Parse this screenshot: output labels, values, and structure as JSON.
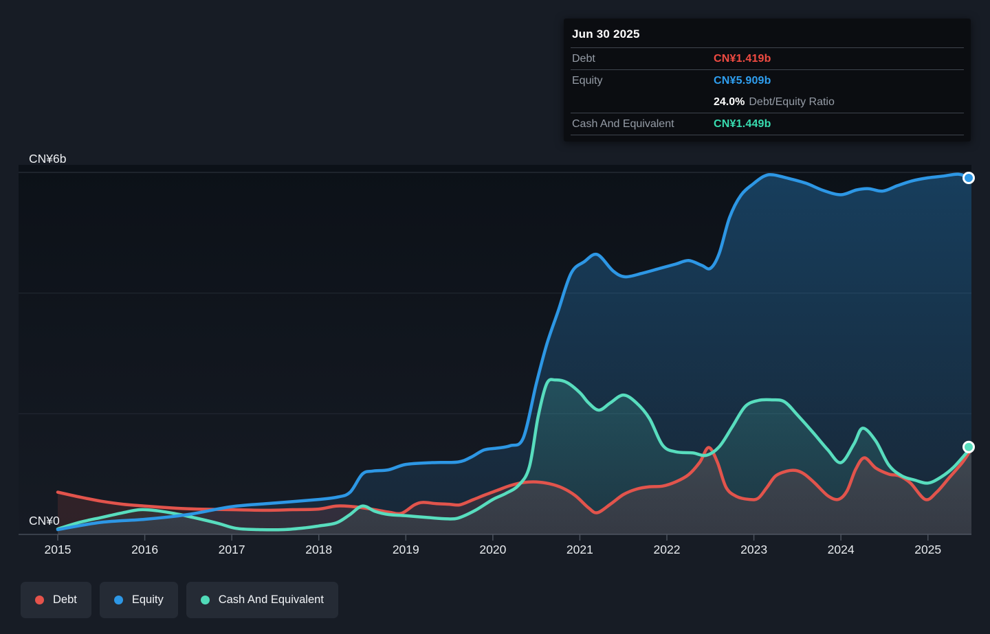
{
  "tooltip": {
    "date": "Jun 30 2025",
    "rows": {
      "debt_label": "Debt",
      "debt_value": "CN¥1.419b",
      "equity_label": "Equity",
      "equity_value": "CN¥5.909b",
      "ratio_value": "24.0%",
      "ratio_label": "Debt/Equity Ratio",
      "cash_label": "Cash And Equivalent",
      "cash_value": "CN¥1.449b"
    }
  },
  "legend": {
    "items": [
      {
        "label": "Debt",
        "color": "#e5534b"
      },
      {
        "label": "Equity",
        "color": "#2d97e5"
      },
      {
        "label": "Cash And Equivalent",
        "color": "#50dab8"
      }
    ]
  },
  "colors": {
    "debt": "#e2544c",
    "equity": "#2d97e5",
    "cash": "#58ddbe",
    "page_bg": "#171c25",
    "plot_bg_top": "#0c1118",
    "plot_bg_bottom": "#161b24",
    "grid_major": "#303741",
    "grid_minor": "#252b35",
    "axis_line": "#454c58",
    "tick_color": "#4a515c",
    "tick_text": "#e8ebee",
    "y_label_text": "#eef0f3"
  },
  "chart_data": {
    "type": "area",
    "currency_unit": "CN¥ billions",
    "xlim": [
      2015,
      2025.5
    ],
    "ylim": [
      0,
      6
    ],
    "x_ticks": [
      "2015",
      "2016",
      "2017",
      "2018",
      "2019",
      "2020",
      "2021",
      "2022",
      "2023",
      "2024",
      "2025"
    ],
    "y_gridlines": [
      6,
      4,
      2
    ],
    "y_axis_labels": [
      {
        "value": 6,
        "text": "CN¥6b"
      },
      {
        "value": 0,
        "text": "CN¥0"
      }
    ],
    "legend_position": "bottom-left",
    "series": [
      {
        "name": "Debt",
        "color": "#e2544c",
        "fill_alpha_top": 0.26,
        "fill_alpha_bottom": 0.12,
        "points": [
          [
            2015.0,
            0.7
          ],
          [
            2015.25,
            0.62
          ],
          [
            2015.5,
            0.55
          ],
          [
            2015.75,
            0.5
          ],
          [
            2016.0,
            0.47
          ],
          [
            2016.3,
            0.44
          ],
          [
            2016.6,
            0.42
          ],
          [
            2017.0,
            0.41
          ],
          [
            2017.4,
            0.4
          ],
          [
            2017.7,
            0.41
          ],
          [
            2018.0,
            0.42
          ],
          [
            2018.2,
            0.47
          ],
          [
            2018.4,
            0.46
          ],
          [
            2018.6,
            0.42
          ],
          [
            2018.8,
            0.37
          ],
          [
            2018.95,
            0.35
          ],
          [
            2019.1,
            0.49
          ],
          [
            2019.2,
            0.53
          ],
          [
            2019.35,
            0.51
          ],
          [
            2019.5,
            0.5
          ],
          [
            2019.62,
            0.49
          ],
          [
            2019.78,
            0.58
          ],
          [
            2019.92,
            0.66
          ],
          [
            2020.05,
            0.73
          ],
          [
            2020.2,
            0.81
          ],
          [
            2020.35,
            0.86
          ],
          [
            2020.5,
            0.87
          ],
          [
            2020.65,
            0.84
          ],
          [
            2020.8,
            0.77
          ],
          [
            2020.95,
            0.64
          ],
          [
            2021.1,
            0.44
          ],
          [
            2021.2,
            0.36
          ],
          [
            2021.35,
            0.5
          ],
          [
            2021.5,
            0.66
          ],
          [
            2021.65,
            0.75
          ],
          [
            2021.8,
            0.79
          ],
          [
            2021.95,
            0.8
          ],
          [
            2022.1,
            0.87
          ],
          [
            2022.25,
            0.99
          ],
          [
            2022.38,
            1.2
          ],
          [
            2022.48,
            1.44
          ],
          [
            2022.58,
            1.2
          ],
          [
            2022.68,
            0.78
          ],
          [
            2022.8,
            0.63
          ],
          [
            2022.95,
            0.58
          ],
          [
            2023.05,
            0.6
          ],
          [
            2023.15,
            0.78
          ],
          [
            2023.25,
            0.97
          ],
          [
            2023.38,
            1.05
          ],
          [
            2023.48,
            1.06
          ],
          [
            2023.58,
            1.0
          ],
          [
            2023.7,
            0.85
          ],
          [
            2023.85,
            0.64
          ],
          [
            2023.97,
            0.58
          ],
          [
            2024.07,
            0.72
          ],
          [
            2024.17,
            1.08
          ],
          [
            2024.27,
            1.27
          ],
          [
            2024.4,
            1.1
          ],
          [
            2024.55,
            1.0
          ],
          [
            2024.67,
            0.97
          ],
          [
            2024.8,
            0.85
          ],
          [
            2024.97,
            0.58
          ],
          [
            2025.1,
            0.7
          ],
          [
            2025.25,
            0.95
          ],
          [
            2025.4,
            1.2
          ],
          [
            2025.5,
            1.419
          ]
        ]
      },
      {
        "name": "Equity",
        "color": "#2d97e5",
        "fill_alpha_top": 0.34,
        "fill_alpha_bottom": 0.1,
        "points": [
          [
            2015.0,
            0.08
          ],
          [
            2015.5,
            0.2
          ],
          [
            2016.0,
            0.25
          ],
          [
            2016.5,
            0.33
          ],
          [
            2017.0,
            0.46
          ],
          [
            2017.5,
            0.52
          ],
          [
            2018.0,
            0.58
          ],
          [
            2018.22,
            0.62
          ],
          [
            2018.36,
            0.7
          ],
          [
            2018.5,
            1.0
          ],
          [
            2018.62,
            1.05
          ],
          [
            2018.8,
            1.07
          ],
          [
            2019.0,
            1.16
          ],
          [
            2019.3,
            1.19
          ],
          [
            2019.6,
            1.2
          ],
          [
            2019.75,
            1.28
          ],
          [
            2019.9,
            1.4
          ],
          [
            2020.05,
            1.43
          ],
          [
            2020.2,
            1.47
          ],
          [
            2020.35,
            1.6
          ],
          [
            2020.5,
            2.5
          ],
          [
            2020.62,
            3.15
          ],
          [
            2020.75,
            3.7
          ],
          [
            2020.9,
            4.33
          ],
          [
            2021.05,
            4.52
          ],
          [
            2021.2,
            4.64
          ],
          [
            2021.38,
            4.37
          ],
          [
            2021.52,
            4.27
          ],
          [
            2021.72,
            4.33
          ],
          [
            2021.92,
            4.41
          ],
          [
            2022.1,
            4.48
          ],
          [
            2022.25,
            4.54
          ],
          [
            2022.4,
            4.46
          ],
          [
            2022.5,
            4.41
          ],
          [
            2022.6,
            4.65
          ],
          [
            2022.72,
            5.25
          ],
          [
            2022.85,
            5.62
          ],
          [
            2023.0,
            5.82
          ],
          [
            2023.12,
            5.94
          ],
          [
            2023.22,
            5.96
          ],
          [
            2023.4,
            5.9
          ],
          [
            2023.6,
            5.82
          ],
          [
            2023.8,
            5.7
          ],
          [
            2024.0,
            5.63
          ],
          [
            2024.18,
            5.71
          ],
          [
            2024.32,
            5.73
          ],
          [
            2024.48,
            5.69
          ],
          [
            2024.65,
            5.78
          ],
          [
            2024.82,
            5.86
          ],
          [
            2025.0,
            5.91
          ],
          [
            2025.18,
            5.94
          ],
          [
            2025.35,
            5.97
          ],
          [
            2025.5,
            5.909
          ]
        ]
      },
      {
        "name": "Cash And Equivalent",
        "color": "#58ddbe",
        "fill_alpha_top": 0.32,
        "fill_alpha_bottom": 0.08,
        "points": [
          [
            2015.0,
            0.09
          ],
          [
            2015.25,
            0.2
          ],
          [
            2015.5,
            0.28
          ],
          [
            2015.75,
            0.36
          ],
          [
            2015.95,
            0.41
          ],
          [
            2016.15,
            0.39
          ],
          [
            2016.4,
            0.33
          ],
          [
            2016.65,
            0.25
          ],
          [
            2016.85,
            0.18
          ],
          [
            2017.05,
            0.1
          ],
          [
            2017.3,
            0.08
          ],
          [
            2017.6,
            0.08
          ],
          [
            2017.85,
            0.11
          ],
          [
            2018.0,
            0.14
          ],
          [
            2018.2,
            0.19
          ],
          [
            2018.35,
            0.32
          ],
          [
            2018.5,
            0.47
          ],
          [
            2018.65,
            0.38
          ],
          [
            2018.8,
            0.33
          ],
          [
            2019.0,
            0.31
          ],
          [
            2019.25,
            0.28
          ],
          [
            2019.45,
            0.26
          ],
          [
            2019.6,
            0.27
          ],
          [
            2019.8,
            0.4
          ],
          [
            2020.0,
            0.58
          ],
          [
            2020.15,
            0.68
          ],
          [
            2020.3,
            0.82
          ],
          [
            2020.42,
            1.12
          ],
          [
            2020.52,
            1.95
          ],
          [
            2020.62,
            2.5
          ],
          [
            2020.72,
            2.56
          ],
          [
            2020.85,
            2.52
          ],
          [
            2021.0,
            2.35
          ],
          [
            2021.1,
            2.18
          ],
          [
            2021.22,
            2.06
          ],
          [
            2021.35,
            2.18
          ],
          [
            2021.5,
            2.31
          ],
          [
            2021.65,
            2.18
          ],
          [
            2021.8,
            1.92
          ],
          [
            2021.95,
            1.48
          ],
          [
            2022.1,
            1.37
          ],
          [
            2022.3,
            1.35
          ],
          [
            2022.45,
            1.31
          ],
          [
            2022.6,
            1.45
          ],
          [
            2022.75,
            1.78
          ],
          [
            2022.9,
            2.12
          ],
          [
            2023.05,
            2.22
          ],
          [
            2023.2,
            2.23
          ],
          [
            2023.35,
            2.2
          ],
          [
            2023.5,
            1.98
          ],
          [
            2023.68,
            1.69
          ],
          [
            2023.85,
            1.4
          ],
          [
            2024.0,
            1.19
          ],
          [
            2024.15,
            1.5
          ],
          [
            2024.25,
            1.76
          ],
          [
            2024.4,
            1.55
          ],
          [
            2024.55,
            1.15
          ],
          [
            2024.7,
            0.97
          ],
          [
            2024.85,
            0.9
          ],
          [
            2025.0,
            0.85
          ],
          [
            2025.15,
            0.95
          ],
          [
            2025.3,
            1.12
          ],
          [
            2025.5,
            1.449
          ]
        ]
      }
    ],
    "end_markers": [
      {
        "series": "Equity",
        "x": 2025.5,
        "y": 5.909
      },
      {
        "series": "Cash And Equivalent",
        "x": 2025.5,
        "y": 1.449
      }
    ]
  }
}
